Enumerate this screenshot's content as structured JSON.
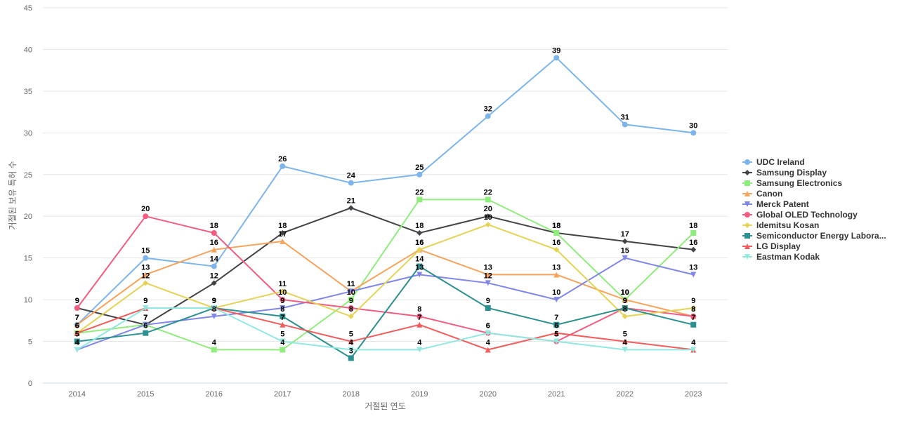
{
  "chart_data": {
    "type": "line",
    "title": "",
    "xlabel": "거절된 연도",
    "ylabel": "거절된 보유 특허 수",
    "ylim": [
      0,
      45
    ],
    "yticks": [
      0,
      5,
      10,
      15,
      20,
      25,
      30,
      35,
      40,
      45
    ],
    "categories": [
      "2014",
      "2015",
      "2016",
      "2017",
      "2018",
      "2019",
      "2020",
      "2021",
      "2022",
      "2023"
    ],
    "grid": true,
    "legend_position": "right",
    "data_labels": true,
    "series": [
      {
        "name": "UDC Ireland",
        "color": "#7cb5ec",
        "marker": "circle",
        "values": [
          7,
          15,
          14,
          26,
          24,
          25,
          32,
          39,
          31,
          30
        ]
      },
      {
        "name": "Samsung Display",
        "color": "#434348",
        "marker": "diamond",
        "values": [
          9,
          7,
          12,
          18,
          21,
          18,
          20,
          18,
          17,
          16
        ]
      },
      {
        "name": "Samsung Electronics",
        "color": "#90ed7d",
        "marker": "square",
        "values": [
          6,
          7,
          4,
          4,
          10,
          22,
          22,
          18,
          10,
          18
        ]
      },
      {
        "name": "Canon",
        "color": "#f7a35c",
        "marker": "triangle",
        "values": [
          7,
          13,
          16,
          17,
          11,
          16,
          13,
          13,
          10,
          8
        ]
      },
      {
        "name": "Merck Patent",
        "color": "#8085e9",
        "marker": "triangle-down",
        "values": [
          4,
          7,
          8,
          9,
          11,
          13,
          12,
          10,
          15,
          13
        ]
      },
      {
        "name": "Global OLED Technology",
        "color": "#f15c80",
        "marker": "circle",
        "values": [
          9,
          20,
          18,
          10,
          9,
          8,
          6,
          5,
          9,
          8
        ]
      },
      {
        "name": "Idemitsu Kosan",
        "color": "#e4d354",
        "marker": "diamond",
        "values": [
          6,
          12,
          9,
          11,
          8,
          16,
          19,
          16,
          8,
          9
        ]
      },
      {
        "name": "Semiconductor Energy Labora...",
        "color": "#2b908f",
        "marker": "square",
        "values": [
          5,
          6,
          9,
          8,
          3,
          14,
          9,
          7,
          9,
          7
        ]
      },
      {
        "name": "LG Display",
        "color": "#f45b5b",
        "marker": "triangle",
        "values": [
          6,
          9,
          9,
          7,
          5,
          7,
          4,
          6,
          5,
          4
        ]
      },
      {
        "name": "Eastman Kodak",
        "color": "#91e8e1",
        "marker": "triangle-down",
        "values": [
          4,
          9,
          9,
          5,
          4,
          4,
          6,
          5,
          4,
          4
        ]
      }
    ]
  }
}
